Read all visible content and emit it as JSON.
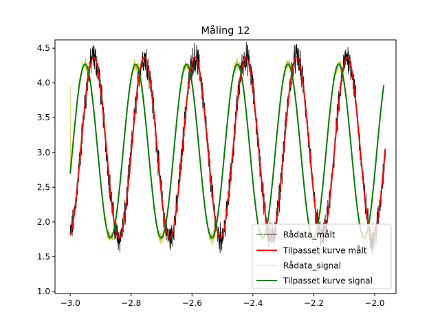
{
  "chart_data": {
    "type": "line",
    "title": "Måling 12",
    "xlabel": "",
    "ylabel": "",
    "xlim": [
      -3.05,
      -1.93
    ],
    "ylim": [
      0.97,
      4.62
    ],
    "x_ticks": [
      -3.0,
      -2.8,
      -2.6,
      -2.4,
      -2.2,
      -2.0
    ],
    "x_tick_labels": [
      "−3.0",
      "−2.8",
      "−2.6",
      "−2.4",
      "−2.2",
      "−2.0"
    ],
    "y_ticks": [
      1.0,
      1.5,
      2.0,
      2.5,
      3.0,
      3.5,
      4.0,
      4.5
    ],
    "y_tick_labels": [
      "1.0",
      "1.5",
      "2.0",
      "2.5",
      "3.0",
      "3.5",
      "4.0",
      "4.5"
    ],
    "grid": false,
    "legend_position": "lower-right",
    "series": [
      {
        "name": "Rådata_målt",
        "color": "#000000",
        "kind": "noisy-raw",
        "x_range": [
          -3.0,
          -1.965
        ],
        "offset": 3.07,
        "amplitude": 1.3,
        "period": 0.1667,
        "phase_x": -3.0,
        "phase_value_at_start": -0.97,
        "noise_amplitude": 0.16
      },
      {
        "name": "Tilpasset kurve målt",
        "color": "#ff0000",
        "kind": "fit",
        "x_range": [
          -3.0,
          -1.965
        ],
        "offset": 3.07,
        "amplitude": 1.3,
        "period": 0.1667,
        "phase_x": -3.0,
        "phase_value_at_start": -0.97
      },
      {
        "name": "Rådata_signal",
        "color": "#bfbf00",
        "kind": "noisy-raw",
        "x_range": [
          -3.0,
          -1.97
        ],
        "offset": 3.02,
        "amplitude": 1.25,
        "period": 0.1667,
        "phase_x": -3.0,
        "phase_value_at_start": -0.26,
        "noise_amplitude": 0.07,
        "start_spike": 3.95
      },
      {
        "name": "Tilpasset kurve signal",
        "color": "#008000",
        "kind": "fit",
        "x_range": [
          -3.0,
          -1.97
        ],
        "offset": 3.02,
        "amplitude": 1.25,
        "period": 0.1667,
        "phase_x": -3.0,
        "phase_value_at_start": -0.26
      }
    ]
  }
}
